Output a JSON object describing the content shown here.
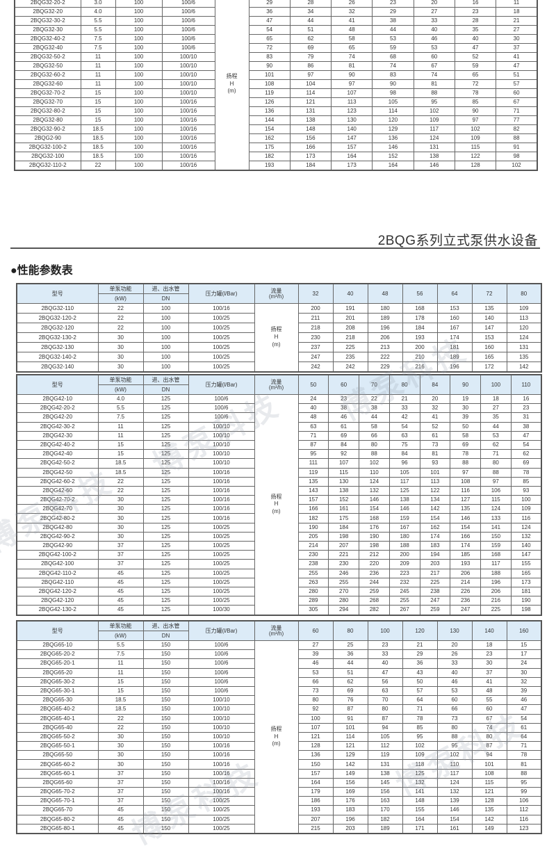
{
  "page": {
    "series_title": "2BQG系列立式泵供水设备",
    "section_title": "●性能参数表",
    "watermark": "博泵科技",
    "colors": {
      "header_bg": "#dcebf7",
      "border": "#555555",
      "text": "#333333"
    }
  },
  "headers": {
    "model": "型号",
    "power": "单泵功能",
    "power_unit": "(kW)",
    "pipe": "进、出水管",
    "pipe_unit": "DN",
    "tank": "压力罐(l/Bar)",
    "flow": "流量",
    "flow_unit": "(m³/h)",
    "head_label": [
      "扬程",
      "H",
      "(m)"
    ]
  },
  "tables": [
    {
      "flows": [
        "",
        "",
        "",
        "",
        "",
        "",
        ""
      ],
      "rows": [
        [
          "2BQG32-20-2",
          "3.0",
          "100",
          "100/6",
          [
            29,
            28,
            26,
            23,
            20,
            16,
            11
          ]
        ],
        [
          "2BQG32-20",
          "4.0",
          "100",
          "100/6",
          [
            36,
            34,
            32,
            29,
            27,
            23,
            18
          ]
        ],
        [
          "2BQG32-30-2",
          "5.5",
          "100",
          "100/6",
          [
            47,
            44,
            41,
            38,
            33,
            28,
            21
          ]
        ],
        [
          "2BQG32-30",
          "5.5",
          "100",
          "100/6",
          [
            54,
            51,
            48,
            44,
            40,
            35,
            27
          ]
        ],
        [
          "2BQG32-40-2",
          "7.5",
          "100",
          "100/6",
          [
            65,
            62,
            58,
            53,
            46,
            40,
            30
          ]
        ],
        [
          "2BQG32-40",
          "7.5",
          "100",
          "100/6",
          [
            72,
            69,
            65,
            59,
            53,
            47,
            37
          ]
        ],
        [
          "2BQG32-50-2",
          "11",
          "100",
          "100/10",
          [
            83,
            79,
            74,
            68,
            60,
            52,
            41
          ]
        ],
        [
          "2BQG32-50",
          "11",
          "100",
          "100/10",
          [
            90,
            86,
            81,
            74,
            67,
            59,
            47
          ]
        ],
        [
          "2BQG32-60-2",
          "11",
          "100",
          "100/10",
          [
            101,
            97,
            90,
            83,
            74,
            65,
            51
          ]
        ],
        [
          "2BQG32-60",
          "11",
          "100",
          "100/10",
          [
            108,
            104,
            97,
            90,
            81,
            72,
            57
          ]
        ],
        [
          "2BQG32-70-2",
          "15",
          "100",
          "100/10",
          [
            119,
            114,
            107,
            98,
            88,
            78,
            60
          ]
        ],
        [
          "2BQG32-70",
          "15",
          "100",
          "100/16",
          [
            126,
            121,
            113,
            105,
            95,
            85,
            67
          ]
        ],
        [
          "2BQG32-80-2",
          "15",
          "100",
          "100/16",
          [
            136,
            131,
            123,
            114,
            102,
            90,
            71
          ]
        ],
        [
          "2BQG32-80",
          "15",
          "100",
          "100/16",
          [
            144,
            138,
            130,
            120,
            109,
            97,
            77
          ]
        ],
        [
          "2BQG32-90-2",
          "18.5",
          "100",
          "100/16",
          [
            154,
            148,
            140,
            129,
            117,
            102,
            82
          ]
        ],
        [
          "2BQG2-90",
          "18.5",
          "100",
          "100/16",
          [
            162,
            156,
            147,
            136,
            124,
            109,
            88
          ]
        ],
        [
          "2BQG32-100-2",
          "18.5",
          "100",
          "100/16",
          [
            175,
            166,
            157,
            146,
            131,
            115,
            91
          ]
        ],
        [
          "2BQG32-100",
          "18.5",
          "100",
          "100/16",
          [
            182,
            173,
            164,
            152,
            138,
            122,
            98
          ]
        ],
        [
          "2BQG32-110-2",
          "22",
          "100",
          "100/16",
          [
            193,
            184,
            173,
            164,
            146,
            128,
            102
          ]
        ]
      ]
    },
    {
      "flows": [
        "32",
        "40",
        "48",
        "56",
        "64",
        "72",
        "80"
      ],
      "rows": [
        [
          "2BQG32-110",
          "22",
          "100",
          "100/16",
          [
            200,
            191,
            180,
            168,
            153,
            135,
            109
          ]
        ],
        [
          "2BQG32-120-2",
          "22",
          "100",
          "100/25",
          [
            211,
            201,
            189,
            178,
            160,
            140,
            113
          ]
        ],
        [
          "2BQG32-120",
          "22",
          "100",
          "100/25",
          [
            218,
            208,
            196,
            184,
            167,
            147,
            120
          ]
        ],
        [
          "2BQG32-130-2",
          "30",
          "100",
          "100/25",
          [
            230,
            218,
            206,
            193,
            174,
            153,
            124
          ]
        ],
        [
          "2BQG32-130",
          "30",
          "100",
          "100/25",
          [
            237,
            225,
            213,
            200,
            181,
            160,
            131
          ]
        ],
        [
          "2BQG32-140-2",
          "30",
          "100",
          "100/25",
          [
            247,
            235,
            222,
            210,
            189,
            165,
            135
          ]
        ],
        [
          "2BQG32-140",
          "30",
          "100",
          "100/25",
          [
            242,
            242,
            229,
            216,
            196,
            172,
            142
          ]
        ]
      ]
    },
    {
      "flows": [
        "50",
        "60",
        "70",
        "80",
        "84",
        "90",
        "100",
        "110"
      ],
      "rows": [
        [
          "2BQG42-10",
          "4.0",
          "125",
          "100/6",
          [
            24,
            23,
            22,
            21,
            20,
            19,
            18,
            16
          ]
        ],
        [
          "2BQG42-20-2",
          "5.5",
          "125",
          "100/6",
          [
            40,
            38,
            38,
            33,
            32,
            30,
            27,
            23
          ]
        ],
        [
          "2BQG42-20",
          "7.5",
          "125",
          "100/6",
          [
            48,
            46,
            44,
            42,
            41,
            39,
            35,
            31
          ]
        ],
        [
          "2BQG42-30-2",
          "11",
          "125",
          "100/10",
          [
            63,
            61,
            58,
            54,
            52,
            50,
            44,
            38
          ]
        ],
        [
          "2BQG42-30",
          "11",
          "125",
          "100/10",
          [
            71,
            69,
            66,
            63,
            61,
            58,
            53,
            47
          ]
        ],
        [
          "2BQG42-40-2",
          "15",
          "125",
          "100/10",
          [
            87,
            84,
            80,
            75,
            73,
            69,
            62,
            54
          ]
        ],
        [
          "2BQG42-40",
          "15",
          "125",
          "100/10",
          [
            95,
            92,
            88,
            84,
            81,
            78,
            71,
            62
          ]
        ],
        [
          "2BQG42-50-2",
          "18.5",
          "125",
          "100/10",
          [
            111,
            107,
            102,
            96,
            93,
            88,
            80,
            69
          ]
        ],
        [
          "2BQG42-50",
          "18.5",
          "125",
          "100/16",
          [
            119,
            115,
            110,
            105,
            101,
            97,
            88,
            78
          ]
        ],
        [
          "2BQG42-60-2",
          "22",
          "125",
          "100/16",
          [
            135,
            130,
            124,
            117,
            113,
            108,
            97,
            85
          ]
        ],
        [
          "2BQG42-60",
          "22",
          "125",
          "100/16",
          [
            143,
            138,
            132,
            125,
            122,
            116,
            106,
            93
          ]
        ],
        [
          "2BQG42-70-2",
          "30",
          "125",
          "100/16",
          [
            157,
            152,
            146,
            138,
            134,
            127,
            115,
            100
          ]
        ],
        [
          "2BQG42-70",
          "30",
          "125",
          "100/16",
          [
            166,
            161,
            154,
            146,
            142,
            135,
            124,
            109
          ]
        ],
        [
          "2BQG42-80-2",
          "30",
          "125",
          "100/16",
          [
            182,
            175,
            168,
            159,
            154,
            146,
            133,
            116
          ]
        ],
        [
          "2BQG42-80",
          "30",
          "125",
          "100/25",
          [
            190,
            184,
            176,
            167,
            162,
            154,
            141,
            124
          ]
        ],
        [
          "2BQG42-90-2",
          "30",
          "125",
          "100/25",
          [
            205,
            198,
            190,
            180,
            174,
            166,
            150,
            132
          ]
        ],
        [
          "2BQG42-90",
          "37",
          "125",
          "100/25",
          [
            214,
            207,
            198,
            188,
            183,
            174,
            159,
            140
          ]
        ],
        [
          "2BQG42-100-2",
          "37",
          "125",
          "100/25",
          [
            230,
            221,
            212,
            200,
            194,
            185,
            168,
            147
          ]
        ],
        [
          "2BQG42-100",
          "37",
          "125",
          "100/25",
          [
            238,
            230,
            220,
            209,
            203,
            193,
            117,
            155
          ]
        ],
        [
          "2BQG42-110-2",
          "45",
          "125",
          "100/25",
          [
            255,
            246,
            236,
            223,
            217,
            206,
            188,
            165
          ]
        ],
        [
          "2BQG42-110",
          "45",
          "125",
          "100/25",
          [
            263,
            255,
            244,
            232,
            225,
            214,
            196,
            173
          ]
        ],
        [
          "2BQG42-120-2",
          "45",
          "125",
          "100/25",
          [
            280,
            270,
            259,
            245,
            238,
            226,
            206,
            181
          ]
        ],
        [
          "2BQG42-120",
          "45",
          "125",
          "100/25",
          [
            289,
            280,
            268,
            255,
            247,
            236,
            216,
            190
          ]
        ],
        [
          "2BQG42-130-2",
          "45",
          "125",
          "100/30",
          [
            305,
            294,
            282,
            267,
            259,
            247,
            225,
            198
          ]
        ]
      ]
    },
    {
      "flows": [
        "60",
        "80",
        "100",
        "120",
        "130",
        "140",
        "160"
      ],
      "rows": [
        [
          "2BQG65-10",
          "5.5",
          "150",
          "100/6",
          [
            27,
            25,
            23,
            21,
            20,
            18,
            15
          ]
        ],
        [
          "2BQG65-20-2",
          "7.5",
          "150",
          "100/6",
          [
            39,
            36,
            33,
            29,
            26,
            23,
            17
          ]
        ],
        [
          "2BQG65-20-1",
          "11",
          "150",
          "100/6",
          [
            46,
            44,
            40,
            36,
            33,
            30,
            24
          ]
        ],
        [
          "2BQG65-20",
          "11",
          "150",
          "100/6",
          [
            53,
            51,
            47,
            43,
            40,
            37,
            30
          ]
        ],
        [
          "2BQG65-30-2",
          "15",
          "150",
          "100/6",
          [
            66,
            62,
            56,
            50,
            46,
            41,
            32
          ]
        ],
        [
          "2BQG65-30-1",
          "15",
          "150",
          "100/6",
          [
            73,
            69,
            63,
            57,
            53,
            48,
            39
          ]
        ],
        [
          "2BQG65-30",
          "18.5",
          "150",
          "100/10",
          [
            80,
            76,
            70,
            64,
            60,
            55,
            46
          ]
        ],
        [
          "2BQG65-40-2",
          "18.5",
          "150",
          "100/10",
          [
            92,
            87,
            80,
            71,
            66,
            60,
            47
          ]
        ],
        [
          "2BQG65-40-1",
          "22",
          "150",
          "100/10",
          [
            100,
            91,
            87,
            78,
            73,
            67,
            54
          ]
        ],
        [
          "2BQG65-40",
          "22",
          "150",
          "100/10",
          [
            107,
            101,
            94,
            85,
            80,
            74,
            61
          ]
        ],
        [
          "2BQG65-50-2",
          "30",
          "150",
          "100/10",
          [
            121,
            114,
            105,
            95,
            88,
            80,
            64
          ]
        ],
        [
          "2BQG65-50-1",
          "30",
          "150",
          "100/16",
          [
            128,
            121,
            112,
            102,
            95,
            87,
            71
          ]
        ],
        [
          "2BQG65-50",
          "30",
          "150",
          "100/16",
          [
            136,
            129,
            119,
            109,
            102,
            94,
            78
          ]
        ],
        [
          "2BQG65-60-2",
          "30",
          "150",
          "100/16",
          [
            150,
            142,
            131,
            118,
            110,
            101,
            81
          ]
        ],
        [
          "2BQG65-60-1",
          "37",
          "150",
          "100/16",
          [
            157,
            149,
            138,
            125,
            117,
            108,
            88
          ]
        ],
        [
          "2BQG65-60",
          "37",
          "150",
          "100/16",
          [
            164,
            156,
            145,
            132,
            124,
            115,
            95
          ]
        ],
        [
          "2BQG65-70-2",
          "37",
          "150",
          "100/16",
          [
            179,
            169,
            156,
            141,
            132,
            121,
            99
          ]
        ],
        [
          "2BQG65-70-1",
          "37",
          "150",
          "100/25",
          [
            186,
            176,
            163,
            148,
            139,
            128,
            106
          ]
        ],
        [
          "2BQG65-70",
          "45",
          "150",
          "100/25",
          [
            193,
            183,
            170,
            155,
            146,
            135,
            112
          ]
        ],
        [
          "2BQG65-80-2",
          "45",
          "150",
          "100/25",
          [
            207,
            196,
            182,
            164,
            154,
            142,
            116
          ]
        ],
        [
          "2BQG65-80-1",
          "45",
          "150",
          "100/25",
          [
            215,
            203,
            189,
            171,
            161,
            149,
            123
          ]
        ]
      ]
    }
  ]
}
